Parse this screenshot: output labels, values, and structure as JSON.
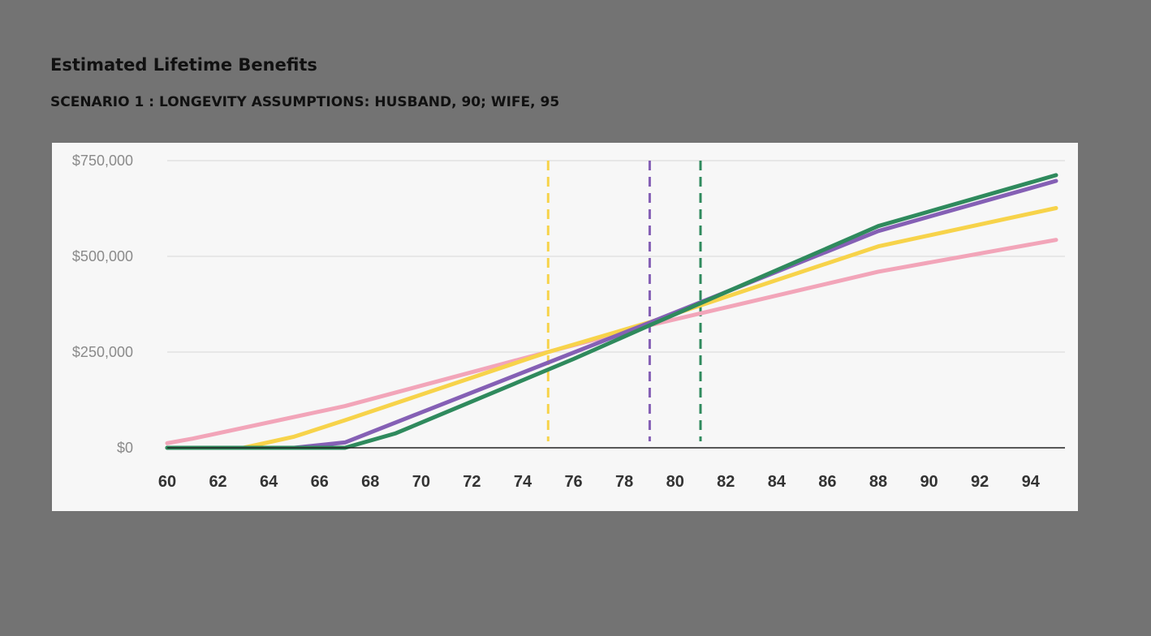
{
  "header": {
    "title": "Estimated Lifetime Benefits",
    "subtitle": "SCENARIO 1 : LONGEVITY ASSUMPTIONS: HUSBAND, 90; WIFE, 95"
  },
  "colors": {
    "page_background": "#737373",
    "plot_background": "#f7f7f7",
    "grid": "#e2e2e2",
    "axis": "#222222"
  },
  "chart_data": {
    "type": "line",
    "xlabel": "",
    "ylabel": "",
    "xlim": [
      59.5,
      95.8
    ],
    "ylim": [
      0,
      750000
    ],
    "x_ticks": [
      60,
      62,
      64,
      66,
      68,
      70,
      72,
      74,
      76,
      78,
      80,
      82,
      84,
      86,
      88,
      90,
      92,
      94
    ],
    "y_ticks": [
      0,
      250000,
      500000,
      750000
    ],
    "y_tick_labels": [
      "$0",
      "$250,000",
      "$500,000",
      "$750,000"
    ],
    "grid": "horizontal",
    "legend": "none",
    "series": [
      {
        "color": "#f2a5b9",
        "points": [
          [
            60,
            12000
          ],
          [
            61,
            24000
          ],
          [
            67,
            109000
          ],
          [
            74,
            233000
          ],
          [
            79,
            320000
          ],
          [
            88,
            460000
          ],
          [
            95,
            543000
          ]
        ]
      },
      {
        "color": "#f7d34a",
        "points": [
          [
            60,
            0
          ],
          [
            63,
            0
          ],
          [
            65,
            29000
          ],
          [
            67,
            72000
          ],
          [
            75,
            250000
          ],
          [
            79,
            328000
          ],
          [
            88,
            526000
          ],
          [
            95,
            626000
          ]
        ]
      },
      {
        "color": "#8560b5",
        "points": [
          [
            60,
            0
          ],
          [
            65,
            0
          ],
          [
            67,
            14000
          ],
          [
            79,
            327000
          ],
          [
            88,
            566000
          ],
          [
            95,
            697000
          ]
        ]
      },
      {
        "color": "#2f8a5d",
        "points": [
          [
            60,
            0
          ],
          [
            67,
            0
          ],
          [
            69,
            38000
          ],
          [
            76,
            232000
          ],
          [
            79,
            320000
          ],
          [
            88,
            579000
          ],
          [
            95,
            712000
          ]
        ]
      }
    ],
    "vertical_markers": [
      {
        "x": 75,
        "color": "#f7d34a",
        "style": "dashed"
      },
      {
        "x": 79,
        "color": "#8560b5",
        "style": "dashed"
      },
      {
        "x": 81,
        "color": "#2f8a5d",
        "style": "dashed"
      }
    ]
  }
}
